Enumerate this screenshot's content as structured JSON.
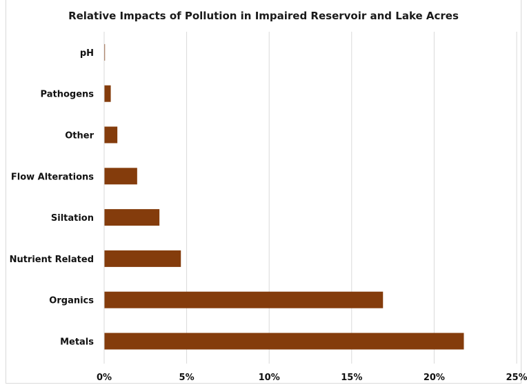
{
  "chart_data": {
    "type": "bar",
    "orientation": "horizontal",
    "title": "Relative Impacts of Pollution in Impaired Reservoir and Lake Acres",
    "categories": [
      "pH",
      "Pathogens",
      "Other",
      "Flow Alterations",
      "Siltation",
      "Nutrient Related",
      "Organics",
      "Metals"
    ],
    "values": [
      0.05,
      0.4,
      0.8,
      2.0,
      3.35,
      4.65,
      16.9,
      21.8
    ],
    "xlim": [
      0,
      25
    ],
    "xticks": [
      "0%",
      "5%",
      "10%",
      "15%",
      "20%",
      "25%"
    ],
    "xtick_values": [
      0,
      5,
      10,
      15,
      20,
      25
    ],
    "bar_color": "#843c0c",
    "grid": "vertical",
    "xlabel": "",
    "ylabel": ""
  }
}
